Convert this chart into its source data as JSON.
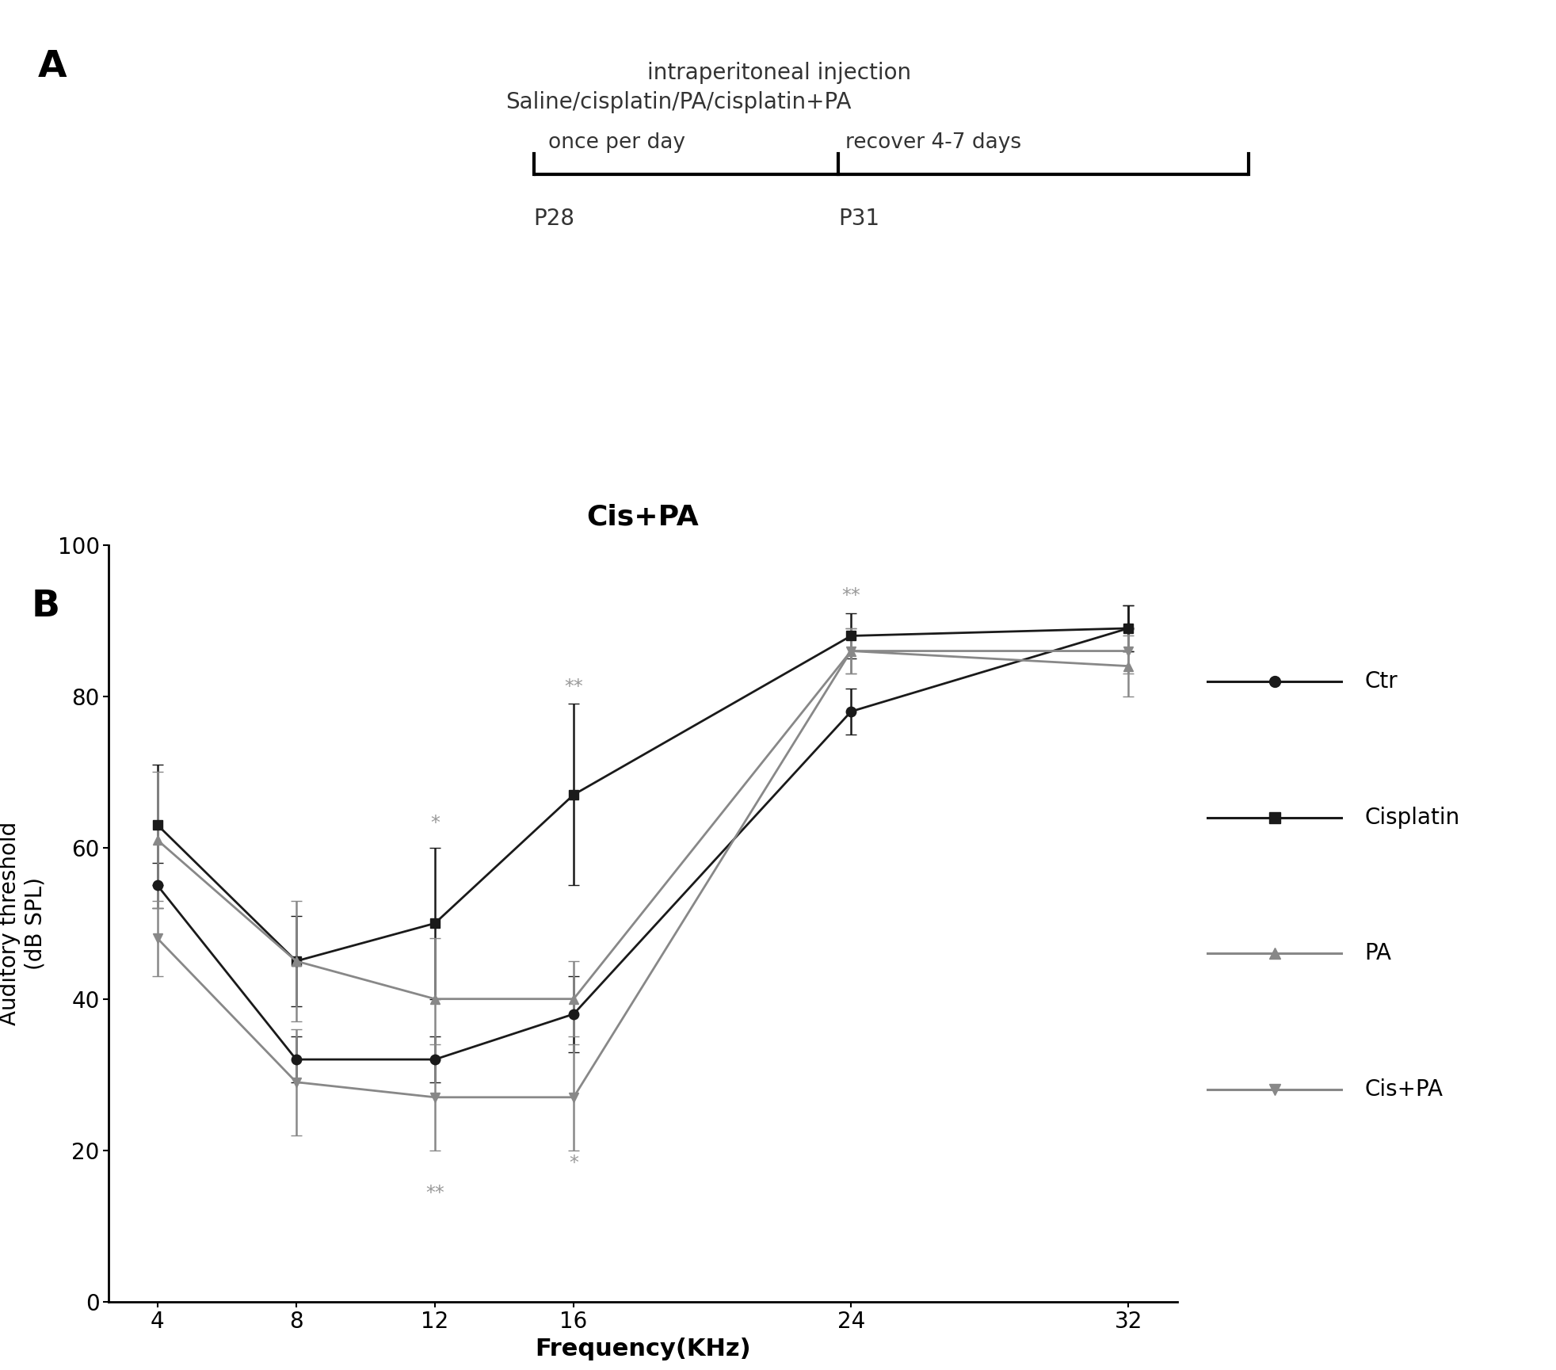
{
  "title_b": "Cis+PA",
  "xlabel": "Frequency(KHz)",
  "ylabel": "Auditory threshold\n(dB SPL)",
  "frequencies": [
    4,
    8,
    12,
    16,
    24,
    32
  ],
  "ctr_y": [
    55,
    32,
    32,
    38,
    78,
    89
  ],
  "ctr_err": [
    3,
    3,
    3,
    5,
    3,
    3
  ],
  "cis_y": [
    63,
    45,
    50,
    67,
    88,
    89
  ],
  "cis_err": [
    8,
    6,
    10,
    12,
    3,
    3
  ],
  "pa_y": [
    61,
    45,
    40,
    40,
    86,
    84
  ],
  "pa_err": [
    9,
    8,
    8,
    5,
    3,
    4
  ],
  "cispa_y": [
    48,
    29,
    27,
    27,
    86,
    86
  ],
  "cispa_err": [
    5,
    7,
    7,
    7,
    3,
    3
  ],
  "ctr_color": "#1a1a1a",
  "cis_color": "#1a1a1a",
  "pa_color": "#888888",
  "cispa_color": "#888888",
  "annot_star_color": "#999999",
  "ylim": [
    0,
    100
  ],
  "yticks": [
    0,
    20,
    40,
    60,
    80,
    100
  ],
  "bg_color": "#ffffff",
  "panel_A_label": "A",
  "panel_B_label": "B",
  "diagram_line1": "intraperitoneal injection",
  "diagram_line2": "Saline/cisplatin/PA/cisplatin+PA",
  "diagram_label_left": "once per day",
  "diagram_label_right": "recover 4-7 days",
  "diagram_P28": "P28",
  "diagram_P31": "P31",
  "legend_labels": [
    "Ctr",
    "Cisplatin",
    "PA",
    "Cis+PA"
  ],
  "legend_markers": [
    "o",
    "s",
    "^",
    "v"
  ],
  "legend_colors": [
    "#1a1a1a",
    "#1a1a1a",
    "#888888",
    "#888888"
  ]
}
